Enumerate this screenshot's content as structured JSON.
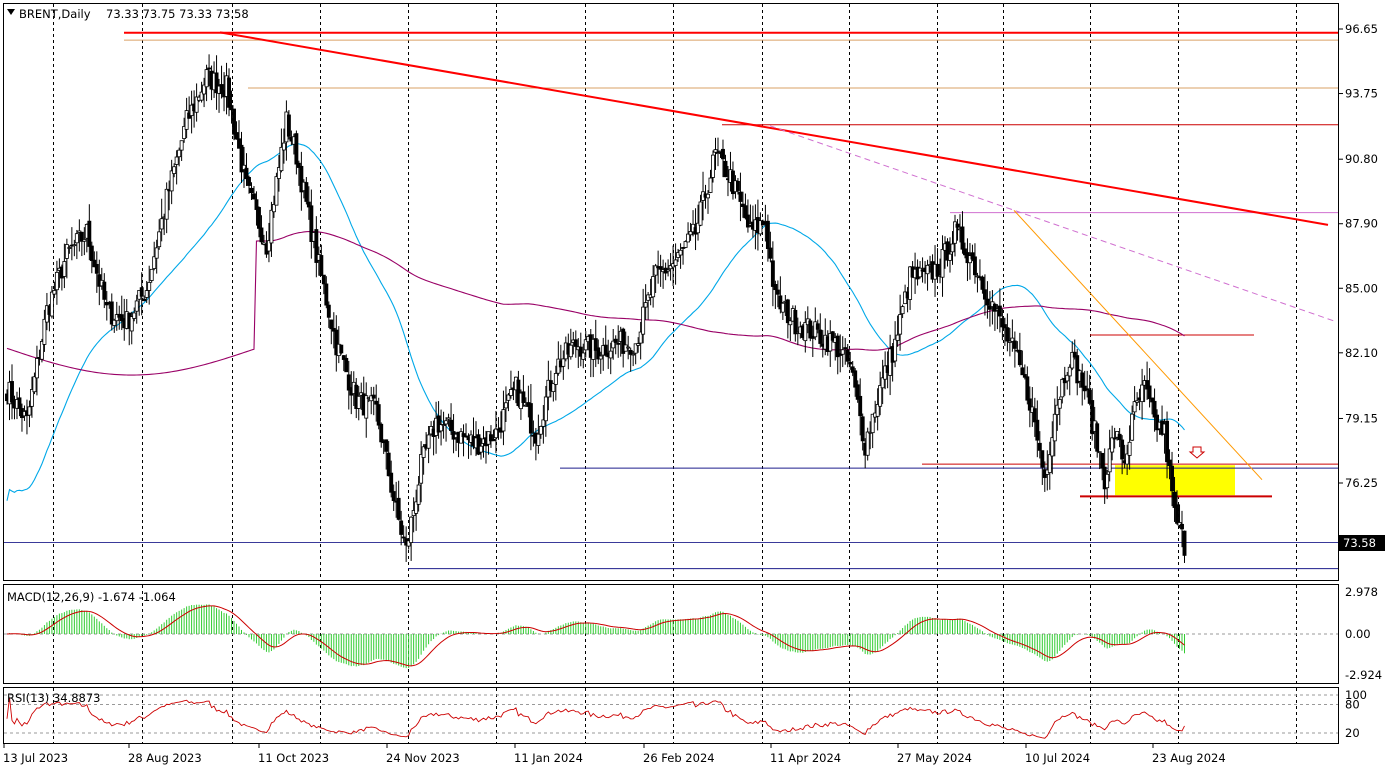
{
  "header": {
    "symbol": "BRENT,Daily",
    "ohlc": "73.33 73.75 73.33 73.58"
  },
  "colors": {
    "frame": "#000000",
    "grid": "#000000",
    "candle": "#000000",
    "candle_up_fill": "#ffffff",
    "trend_main": "#ff0000",
    "level_red": "#cc0000",
    "level_tan": "#d9a066",
    "level_blue": "#1e1e8c",
    "level_magenta": "#d070d0",
    "trend_orange": "#ff9900",
    "sma_fast": "#00a8e8",
    "sma_slow": "#990066",
    "macd_hist": "#33cc33",
    "macd_signal": "#cc0000",
    "rsi_line": "#cc0000",
    "zone_fill": "#ffff00",
    "price_tag_bg": "#000000",
    "price_tag_text": "#ffffff"
  },
  "chart_data": [
    {
      "type": "candlestick",
      "panel": "price",
      "title": "BRENT,Daily",
      "y_ticks": [
        "96.65",
        "93.75",
        "90.80",
        "87.90",
        "85.00",
        "82.10",
        "79.15",
        "76.25"
      ],
      "ylim": [
        72.4,
        97.2
      ],
      "current_price": "73.58",
      "x_ticks": [
        "13 Jul 2023",
        "28 Aug 2023",
        "11 Oct 2023",
        "24 Nov 2023",
        "11 Jan 2024",
        "26 Feb 2024",
        "11 Apr 2024",
        "27 May 2024",
        "10 Jul 2024",
        "23 Aug 2024"
      ],
      "close_path": [
        [
          0,
          80.5
        ],
        [
          8,
          79.0
        ],
        [
          16,
          84.0
        ],
        [
          24,
          86.5
        ],
        [
          32,
          87.5
        ],
        [
          40,
          84.0
        ],
        [
          48,
          83.5
        ],
        [
          56,
          85.0
        ],
        [
          64,
          89.0
        ],
        [
          72,
          92.5
        ],
        [
          80,
          94.5
        ],
        [
          88,
          94.0
        ],
        [
          96,
          89.5
        ],
        [
          104,
          87.0
        ],
        [
          112,
          92.5
        ],
        [
          116,
          91.0
        ],
        [
          124,
          86.5
        ],
        [
          132,
          82.5
        ],
        [
          140,
          80.0
        ],
        [
          148,
          79.5
        ],
        [
          156,
          75.0
        ],
        [
          160,
          73.2
        ],
        [
          166,
          77.0
        ],
        [
          172,
          79.0
        ],
        [
          180,
          78.5
        ],
        [
          188,
          78.0
        ],
        [
          196,
          78.5
        ],
        [
          204,
          80.5
        ],
        [
          212,
          78.5
        ],
        [
          220,
          81.5
        ],
        [
          228,
          82.5
        ],
        [
          236,
          82.2
        ],
        [
          244,
          82.5
        ],
        [
          252,
          82.6
        ],
        [
          260,
          85.5
        ],
        [
          268,
          86.2
        ],
        [
          276,
          87.5
        ],
        [
          284,
          91.0
        ],
        [
          290,
          90.0
        ],
        [
          298,
          87.5
        ],
        [
          304,
          88.0
        ],
        [
          308,
          84.5
        ],
        [
          316,
          83.5
        ],
        [
          324,
          83.0
        ],
        [
          332,
          82.5
        ],
        [
          338,
          81.5
        ],
        [
          344,
          78.0
        ],
        [
          350,
          80.5
        ],
        [
          356,
          82.5
        ],
        [
          362,
          85.5
        ],
        [
          368,
          85.5
        ],
        [
          374,
          86.0
        ],
        [
          380,
          87.5
        ],
        [
          386,
          86.5
        ],
        [
          392,
          85.0
        ],
        [
          398,
          83.5
        ],
        [
          404,
          82.0
        ],
        [
          410,
          80.0
        ],
        [
          416,
          76.5
        ],
        [
          420,
          79.5
        ],
        [
          426,
          82.0
        ],
        [
          432,
          80.5
        ],
        [
          436,
          78.5
        ],
        [
          440,
          76.5
        ],
        [
          444,
          78.5
        ],
        [
          448,
          77.2
        ],
        [
          452,
          79.5
        ],
        [
          456,
          80.5
        ],
        [
          460,
          79.0
        ],
        [
          464,
          78.5
        ],
        [
          468,
          74.8
        ],
        [
          472,
          73.5
        ]
      ],
      "indicators": [
        "SMA fast (cyan)",
        "SMA slow (purple)"
      ]
    },
    {
      "type": "histogram+line",
      "panel": "macd",
      "title": "MACD(12,26,9) -1.674 -1.064",
      "y_ticks": [
        "2.978",
        "0.00",
        "-2.924"
      ],
      "ylim": [
        -3.3,
        3.4
      ]
    },
    {
      "type": "line",
      "panel": "rsi",
      "title": "RSI(13) 34.8873",
      "y_ticks": [
        "100",
        "80",
        "20"
      ],
      "ylim": [
        0,
        100
      ],
      "current": 34.8873
    }
  ]
}
